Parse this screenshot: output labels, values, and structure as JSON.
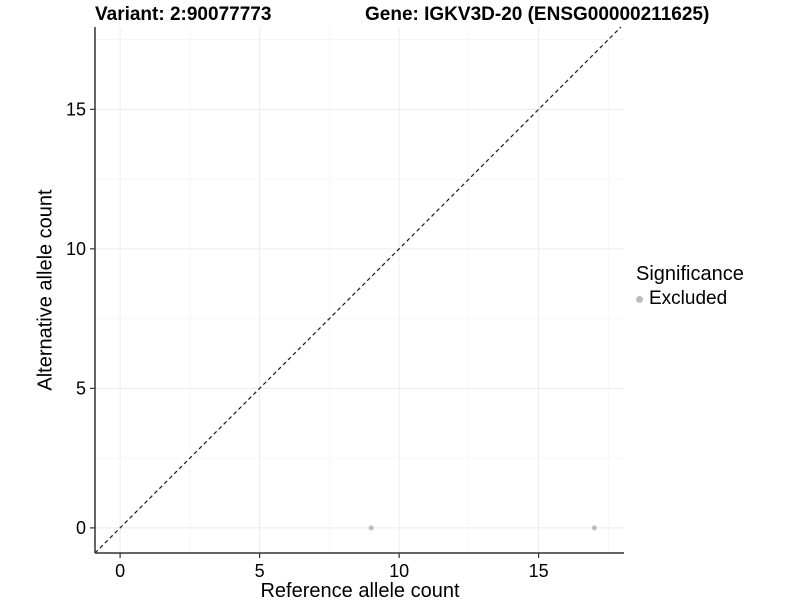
{
  "chart_data": {
    "type": "scatter",
    "title_left": "Variant: 2:90077773",
    "title_right": "Gene: IGKV3D-20 (ENSG00000211625)",
    "xlabel": "Reference allele count",
    "ylabel": "Alternative allele count",
    "xlim": [
      -0.9,
      18.06
    ],
    "ylim": [
      -0.9,
      17.95
    ],
    "x_ticks": [
      0,
      5,
      10,
      15
    ],
    "y_ticks": [
      0,
      5,
      10,
      15
    ],
    "x_minor_ticks": [
      2.5,
      7.5,
      12.5,
      17.5
    ],
    "y_minor_ticks": [
      2.5,
      7.5,
      12.5,
      17.5
    ],
    "grid": "major+minor on white panel",
    "axis_lines": "left and bottom only",
    "identity_line": {
      "type": "dashed",
      "equation": "y = x"
    },
    "series": [
      {
        "name": "Excluded",
        "color": "#bdbdbd",
        "points": [
          [
            9,
            0
          ],
          [
            17,
            0
          ]
        ]
      }
    ],
    "legend": {
      "title": "Significance",
      "position": "right",
      "items": [
        {
          "label": "Excluded",
          "color": "#bdbdbd"
        }
      ]
    }
  },
  "colors": {
    "background": "#ffffff",
    "grid_major": "#ececec",
    "grid_minor": "#f6f6f6",
    "axis_line": "#333333",
    "tick_mark": "#333333",
    "dashed_line": "#1a1a1a",
    "point": "#bdbdbd",
    "text": "#000000"
  }
}
